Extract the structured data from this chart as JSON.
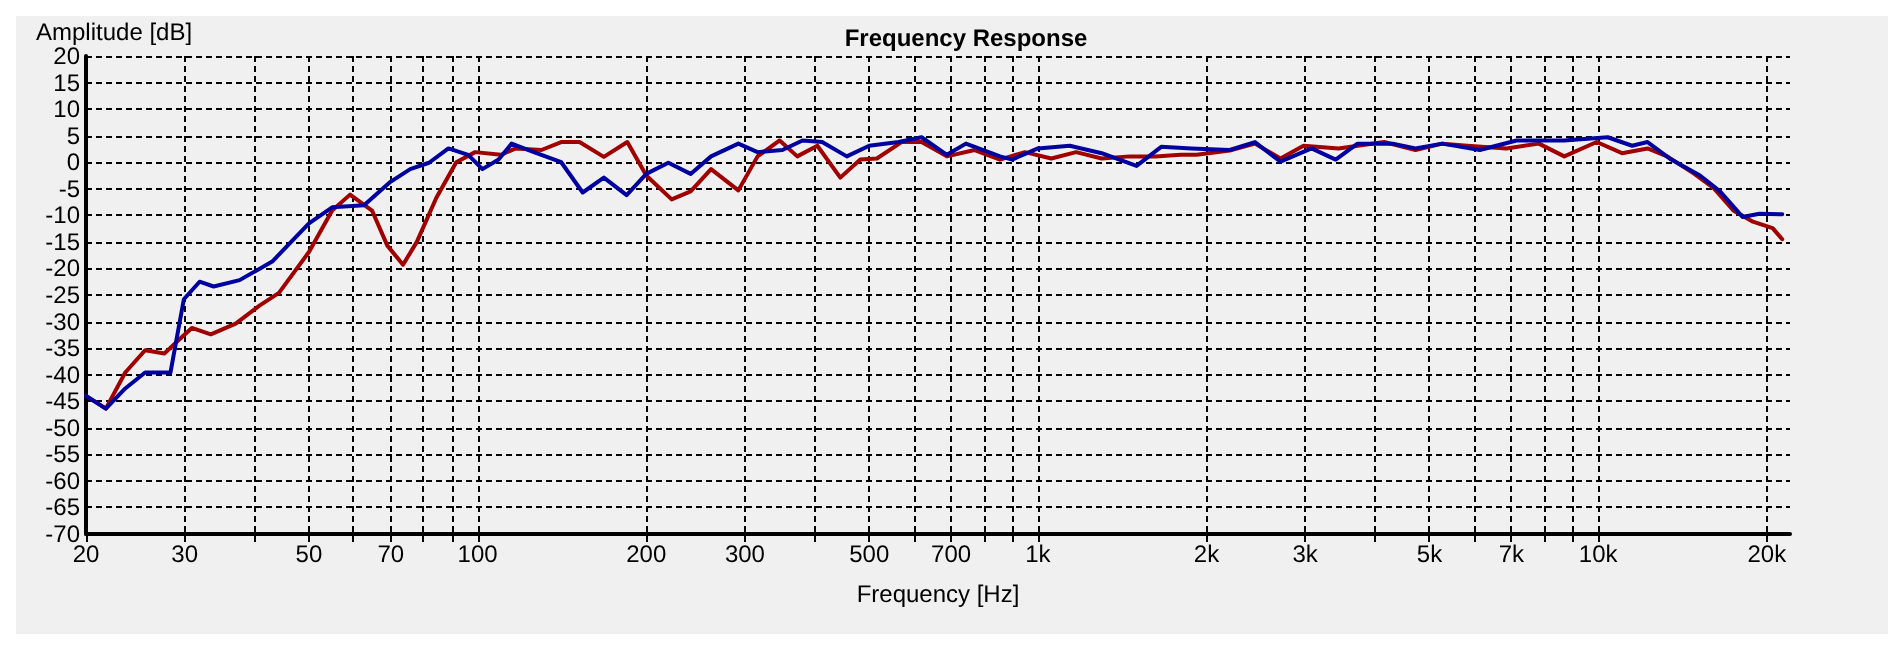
{
  "chart_data": {
    "type": "line",
    "title": "Frequency Response",
    "xlabel": "Frequency [Hz]",
    "ylabel": "Amplitude [dB]",
    "log": "x",
    "grid": true,
    "marker": "none",
    "line_style": "solid",
    "xlim": [
      20,
      22000
    ],
    "xticks": [
      20,
      30,
      {
        "value": 40,
        "label": null
      },
      50,
      {
        "value": 60,
        "label": null
      },
      70,
      {
        "value": 80,
        "label": null
      },
      {
        "value": 90,
        "label": null
      },
      100,
      200,
      300,
      {
        "value": 400,
        "label": null
      },
      500,
      {
        "value": 600,
        "label": null
      },
      700,
      {
        "value": 800,
        "label": null
      },
      {
        "value": 900,
        "label": null
      },
      {
        "value": 1000,
        "label": "1k"
      },
      {
        "value": 2000,
        "label": "2k"
      },
      {
        "value": 3000,
        "label": "3k"
      },
      {
        "value": 4000,
        "label": null
      },
      {
        "value": 5000,
        "label": "5k"
      },
      {
        "value": 6000,
        "label": null
      },
      {
        "value": 7000,
        "label": "7k"
      },
      {
        "value": 8000,
        "label": null
      },
      {
        "value": 9000,
        "label": null
      },
      {
        "value": 10000,
        "label": "10k"
      },
      {
        "value": 20000,
        "label": "20k"
      }
    ],
    "ylim": [
      -70,
      20
    ],
    "yticks": [
      -70,
      -65,
      -60,
      -55,
      -50,
      -45,
      -40,
      -35,
      -30,
      -25,
      -20,
      -15,
      -10,
      -5,
      0,
      5,
      10,
      15,
      20
    ],
    "series": [
      {
        "color": "#a00000",
        "x": [
          20,
          21.7,
          23.5,
          25.5,
          27.6,
          29.6,
          30.9,
          33.4,
          37,
          40.8,
          44.2,
          50,
          55,
          59.2,
          64.8,
          69,
          73.6,
          77.9,
          84.4,
          91.6,
          99,
          110,
          117,
          130,
          141,
          152,
          168,
          185,
          200,
          222,
          240,
          261,
          292,
          316,
          346,
          372,
          404,
          444,
          482,
          516,
          571,
          620,
          688,
          771,
          856,
          948,
          1057,
          1170,
          1300,
          1460,
          1620,
          1800,
          1920,
          2200,
          2440,
          2710,
          2980,
          3440,
          4150,
          4720,
          5270,
          5840,
          6860,
          7840,
          8700,
          9940,
          11030,
          12250,
          13280,
          14850,
          16080,
          17430,
          18890,
          20480,
          21310
        ],
        "values": [
          -44,
          -46.4,
          -39.6,
          -35.4,
          -36,
          -33,
          -31.2,
          -32.4,
          -30.4,
          -27,
          -24.6,
          -16.9,
          -9.1,
          -6.1,
          -9.1,
          -15.7,
          -19.3,
          -15,
          -6.7,
          0,
          1.9,
          1.4,
          2.6,
          2.3,
          3.8,
          3.8,
          1,
          3.8,
          -2.5,
          -7,
          -5.5,
          -1.3,
          -5.3,
          1.1,
          4.1,
          1.1,
          3.1,
          -2.9,
          0.5,
          0.7,
          3.8,
          3.8,
          1.1,
          2.3,
          0.5,
          1.9,
          0.7,
          1.9,
          0.7,
          1.1,
          1.1,
          1.4,
          1.4,
          2.2,
          3.5,
          0.7,
          3.1,
          2.6,
          3.8,
          2.3,
          3.5,
          3.1,
          2.6,
          3.5,
          1.1,
          3.8,
          1.7,
          2.6,
          1.1,
          -2.2,
          -4.9,
          -9.1,
          -11.2,
          -12.4,
          -14.5
        ]
      },
      {
        "color": "#0000a0",
        "x": [
          20,
          21.7,
          23.5,
          25.5,
          28.3,
          29.9,
          31.9,
          33.8,
          37.6,
          43,
          50,
          55,
          62.7,
          69.9,
          75.8,
          81.9,
          88.7,
          96.2,
          102,
          109,
          115,
          126,
          141,
          154,
          168,
          184.5,
          200,
          219,
          240,
          261,
          292,
          316,
          350,
          380,
          412,
          456,
          500,
          564,
          620,
          688,
          744,
          856,
          900,
          1000,
          1140,
          1300,
          1500,
          1660,
          1880,
          2200,
          2440,
          2710,
          3080,
          3400,
          3720,
          4300,
          4720,
          5270,
          6150,
          7150,
          8700,
          10400,
          11500,
          12250,
          13500,
          15200,
          16500,
          18100,
          19400,
          21310
        ],
        "values": [
          -44,
          -46.4,
          -42.6,
          -39.6,
          -39.6,
          -25.8,
          -22.5,
          -23.4,
          -22.2,
          -18.7,
          -11.5,
          -8.5,
          -8.1,
          -3.7,
          -1.3,
          -0.1,
          2.6,
          1.4,
          -1.3,
          0.5,
          3.5,
          1.9,
          0,
          -5.7,
          -2.9,
          -6.2,
          -2.2,
          -0.1,
          -2.2,
          1.1,
          3.5,
          1.9,
          2.3,
          4.1,
          3.8,
          1.1,
          3.1,
          3.8,
          4.7,
          1.4,
          3.5,
          1.1,
          0.5,
          2.6,
          3.1,
          1.7,
          -0.7,
          2.9,
          2.6,
          2.3,
          3.8,
          0.1,
          2.6,
          0.5,
          3.5,
          3.5,
          2.6,
          3.5,
          2.3,
          4.1,
          4.1,
          4.7,
          3.1,
          3.8,
          0.5,
          -2.5,
          -5.5,
          -10.3,
          -9.7,
          -9.8
        ]
      }
    ]
  }
}
